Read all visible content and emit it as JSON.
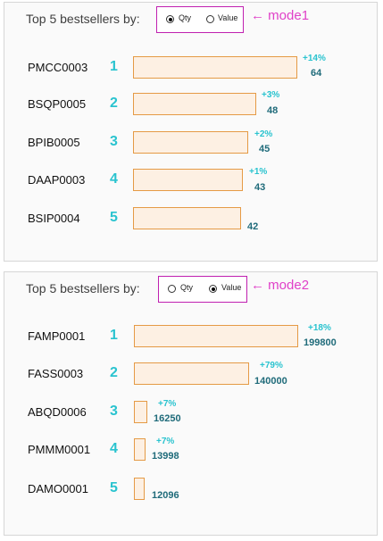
{
  "panels": [
    {
      "title": "Top 5 bestsellers by:",
      "mode_options": [
        "Qty",
        "Value"
      ],
      "selected": "Qty",
      "annotation": "← mode1",
      "rows": [
        {
          "code": "PMCC0003",
          "rank": "1",
          "pct": "+14%",
          "value": "64",
          "share": 1.0
        },
        {
          "code": "BSQP0005",
          "rank": "2",
          "pct": "+3%",
          "value": "48",
          "share": 0.75
        },
        {
          "code": "BPIB0005",
          "rank": "3",
          "pct": "+2%",
          "value": "45",
          "share": 0.7
        },
        {
          "code": "DAAP0003",
          "rank": "4",
          "pct": "+1%",
          "value": "43",
          "share": 0.67
        },
        {
          "code": "BSIP0004",
          "rank": "5",
          "pct": "",
          "value": "42",
          "share": 0.66
        }
      ]
    },
    {
      "title": "Top 5 bestsellers by:",
      "mode_options": [
        "Qty",
        "Value"
      ],
      "selected": "Value",
      "annotation": "← mode2",
      "rows": [
        {
          "code": "FAMP0001",
          "rank": "1",
          "pct": "+18%",
          "value": "199800",
          "share": 1.0
        },
        {
          "code": "FASS0003",
          "rank": "2",
          "pct": "+79%",
          "value": "140000",
          "share": 0.7
        },
        {
          "code": "ABQD0006",
          "rank": "3",
          "pct": "+7%",
          "value": "16250",
          "share": 0.081
        },
        {
          "code": "PMMM0001",
          "rank": "4",
          "pct": "+7%",
          "value": "13998",
          "share": 0.07
        },
        {
          "code": "DAMO0001",
          "rank": "5",
          "pct": "",
          "value": "12096",
          "share": 0.061
        }
      ]
    }
  ]
}
